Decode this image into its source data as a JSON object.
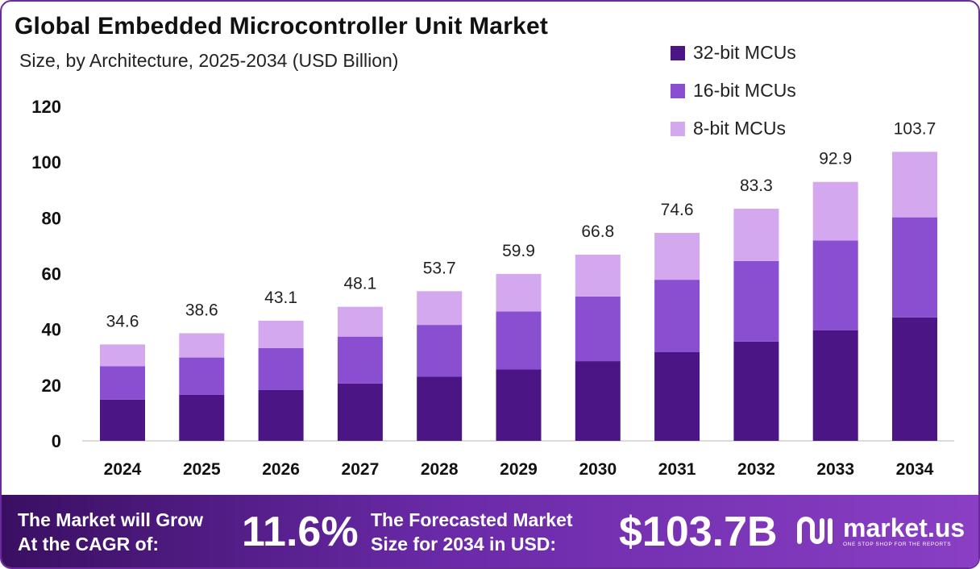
{
  "header": {
    "title": "Global Embedded Microcontroller Unit Market",
    "subtitle": "Size, by Architecture, 2025-2034 (USD Billion)"
  },
  "legend": {
    "items": [
      {
        "label": "32-bit MCUs",
        "color": "#4b1585"
      },
      {
        "label": "16-bit MCUs",
        "color": "#8a4ed0"
      },
      {
        "label": "8-bit MCUs",
        "color": "#d3a8ee"
      }
    ]
  },
  "chart_data": {
    "type": "bar",
    "stacked": true,
    "categories": [
      "2024",
      "2025",
      "2026",
      "2027",
      "2028",
      "2029",
      "2030",
      "2031",
      "2032",
      "2033",
      "2034"
    ],
    "series": [
      {
        "name": "32-bit MCUs",
        "color": "#4b1585",
        "values": [
          14.8,
          16.5,
          18.3,
          20.6,
          23.0,
          25.6,
          28.6,
          31.9,
          35.6,
          39.7,
          44.3
        ]
      },
      {
        "name": "16-bit MCUs",
        "color": "#8a4ed0",
        "values": [
          12.0,
          13.4,
          15.0,
          16.8,
          18.6,
          20.8,
          23.2,
          25.9,
          28.9,
          32.2,
          35.9
        ]
      },
      {
        "name": "8-bit MCUs",
        "color": "#d3a8ee",
        "values": [
          7.8,
          8.7,
          9.8,
          10.7,
          12.1,
          13.5,
          15.0,
          16.8,
          18.8,
          21.0,
          23.5
        ]
      }
    ],
    "totals": [
      "34.6",
      "38.6",
      "43.1",
      "48.1",
      "53.7",
      "59.9",
      "66.8",
      "74.6",
      "83.3",
      "92.9",
      "103.7"
    ],
    "yticks": [
      "0",
      "20",
      "40",
      "60",
      "80",
      "100",
      "120"
    ],
    "ylim": [
      0,
      120
    ],
    "grid": false,
    "legend_position": "top-right"
  },
  "footer": {
    "cagr_label_line1": "The Market will Grow",
    "cagr_label_line2": "At the CAGR of:",
    "cagr_value": "11.6%",
    "forecast_label_line1": "The Forecasted Market",
    "forecast_label_line2": "Size for 2034 in USD:",
    "forecast_value": "$103.7B",
    "brand_name": "market.us",
    "brand_tagline": "ONE STOP SHOP FOR THE REPORTS",
    "brand_icon": "market-us-logo-icon"
  }
}
